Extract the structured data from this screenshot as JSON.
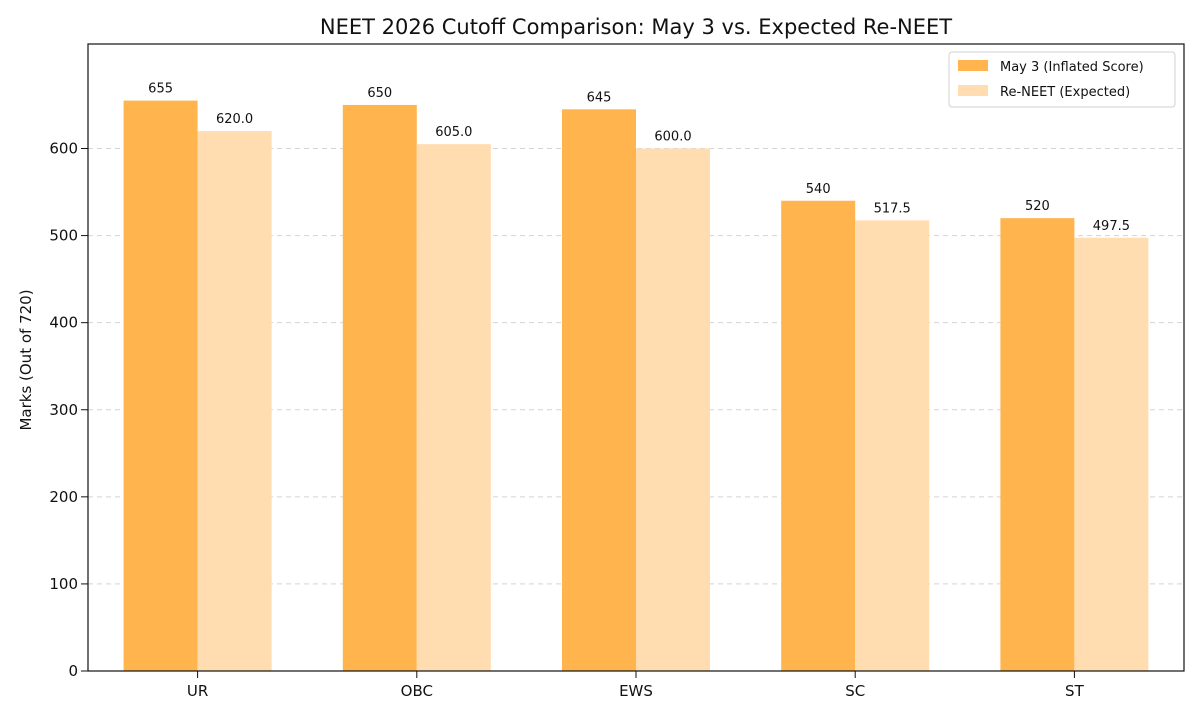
{
  "chart_data": {
    "type": "bar",
    "title": "NEET 2026 Cutoff Comparison: May 3 vs. Expected Re-NEET",
    "xlabel": "",
    "ylabel": "Marks (Out of 720)",
    "categories": [
      "UR",
      "OBC",
      "EWS",
      "SC",
      "ST"
    ],
    "series": [
      {
        "name": "May 3 (Inflated Score)",
        "values": [
          655,
          650,
          645,
          540,
          520
        ],
        "value_labels": [
          "655",
          "650",
          "645",
          "540",
          "520"
        ],
        "color": "#FFB44D"
      },
      {
        "name": "Re-NEET (Expected)",
        "values": [
          620.0,
          605.0,
          600.0,
          517.5,
          497.5
        ],
        "value_labels": [
          "620.0",
          "605.0",
          "600.0",
          "517.5",
          "497.5"
        ],
        "color": "#FFDDB0"
      }
    ],
    "ylim": [
      0,
      720
    ],
    "yticks": [
      0,
      100,
      200,
      300,
      400,
      500,
      600
    ],
    "grid": true,
    "legend_position": "top-right"
  }
}
